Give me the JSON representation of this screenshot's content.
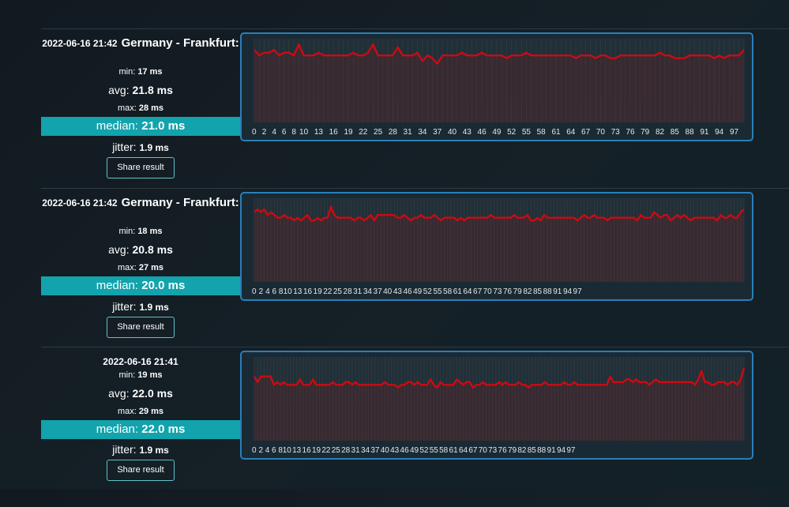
{
  "results": [
    {
      "timestamp": "2022-06-16 21:42",
      "location": "Germany - Frankfurt:",
      "min_label": "min:",
      "min": "17 ms",
      "avg_label": "avg:",
      "avg": "21.8 ms",
      "max_label": "max:",
      "max": "28 ms",
      "median_label": "median:",
      "median": "21.0 ms",
      "jitter_label": "jitter:",
      "jitter": "1.9 ms",
      "share_label": "Share result"
    },
    {
      "timestamp": "2022-06-16 21:42",
      "location": "Germany - Frankfurt:",
      "min_label": "min:",
      "min": "18 ms",
      "avg_label": "avg:",
      "avg": "20.8 ms",
      "max_label": "max:",
      "max": "27 ms",
      "median_label": "median:",
      "median": "20.0 ms",
      "jitter_label": "jitter:",
      "jitter": "1.9 ms",
      "share_label": "Share result"
    },
    {
      "timestamp": "2022-06-16 21:41",
      "location": "",
      "min_label": "min:",
      "min": "19 ms",
      "avg_label": "avg:",
      "avg": "22.0 ms",
      "max_label": "max:",
      "max": "29 ms",
      "median_label": "median:",
      "median": "22.0 ms",
      "jitter_label": "jitter:",
      "jitter": "1.9 ms",
      "share_label": "Share result"
    }
  ],
  "colors": {
    "line": "#cc0a12",
    "fill": "#3a2a31",
    "median_bg": "#12a3ad",
    "border": "#2a7fb8"
  },
  "chart_data": [
    {
      "type": "line",
      "x_tick_labels": [
        "0",
        "2",
        "4",
        "6",
        "8",
        "10",
        "13",
        "16",
        "19",
        "22",
        "25",
        "28",
        "31",
        "34",
        "37",
        "40",
        "43",
        "46",
        "49",
        "52",
        "55",
        "58",
        "61",
        "64",
        "67",
        "70",
        "73",
        "76",
        "79",
        "82",
        "85",
        "88",
        "91",
        "94",
        "97"
      ],
      "ylim": [
        0,
        30
      ],
      "series": [
        {
          "values": [
            26,
            24,
            25,
            25,
            26,
            24,
            25,
            25,
            24,
            28,
            24,
            24,
            24,
            25,
            24,
            24,
            24,
            24,
            24,
            24,
            25,
            24,
            24,
            25,
            28,
            24,
            24,
            24,
            24,
            27,
            24,
            24,
            24,
            25,
            22,
            24,
            23,
            21,
            24,
            24,
            24,
            24,
            25,
            24,
            24,
            24,
            25,
            24,
            24,
            24,
            24,
            23,
            24,
            24,
            24,
            25,
            24,
            24,
            24,
            24,
            24,
            24,
            24,
            24,
            24,
            23,
            24,
            24,
            24,
            23,
            24,
            24,
            23,
            23,
            24,
            24,
            24,
            24,
            24,
            24,
            24,
            24,
            25,
            24,
            24,
            23,
            23,
            23,
            24,
            24,
            24,
            24,
            24,
            23,
            24,
            23,
            24,
            24,
            24,
            26
          ]
        }
      ]
    },
    {
      "type": "line",
      "x_tick_labels": [
        "0",
        "2",
        "4",
        "6",
        "8",
        "10",
        "13",
        "16",
        "19",
        "22",
        "25",
        "28",
        "31",
        "34",
        "37",
        "40",
        "43",
        "46",
        "49",
        "52",
        "55",
        "58",
        "61",
        "64",
        "67",
        "70",
        "73",
        "76",
        "79",
        "82",
        "85",
        "88",
        "91",
        "94",
        "97"
      ],
      "ylim": [
        0,
        30
      ],
      "series": [
        {
          "values": [
            25,
            26,
            25,
            26,
            24,
            25,
            24,
            23,
            23,
            24,
            23,
            23,
            22,
            23,
            22,
            23,
            24,
            22,
            22,
            23,
            22,
            23,
            23,
            27,
            24,
            23,
            23,
            23,
            23,
            23,
            22,
            23,
            23,
            22,
            23,
            24,
            22,
            24,
            24,
            24,
            24,
            24,
            24,
            23,
            23,
            24,
            23,
            22,
            23,
            23,
            24,
            23,
            23,
            23,
            24,
            23,
            22,
            23,
            23,
            23,
            23,
            22,
            23,
            22,
            23,
            23,
            23,
            23,
            23,
            23,
            23,
            24,
            23,
            23,
            23,
            23,
            23,
            23,
            24,
            23,
            23,
            23,
            24,
            22,
            22,
            23,
            22,
            24,
            23,
            23,
            23,
            23,
            23,
            23,
            23,
            23,
            23,
            22,
            23,
            24,
            23,
            23,
            24,
            23,
            23,
            23,
            22,
            23,
            23,
            23,
            23,
            23,
            23,
            23,
            23,
            22,
            24,
            23,
            23,
            23,
            25,
            24,
            23,
            24,
            24,
            22,
            23,
            24,
            23,
            24,
            23,
            22,
            23,
            23,
            23,
            23,
            23,
            23,
            23,
            22,
            24,
            23,
            23,
            24,
            23,
            23,
            25,
            26
          ]
        }
      ]
    },
    {
      "type": "line",
      "x_tick_labels": [
        "0",
        "2",
        "4",
        "6",
        "8",
        "10",
        "13",
        "16",
        "19",
        "22",
        "25",
        "28",
        "31",
        "34",
        "37",
        "40",
        "43",
        "46",
        "49",
        "52",
        "55",
        "58",
        "61",
        "64",
        "67",
        "70",
        "73",
        "76",
        "79",
        "82",
        "85",
        "88",
        "91",
        "94",
        "97"
      ],
      "ylim": [
        0,
        30
      ],
      "series": [
        {
          "values": [
            23,
            21,
            23,
            23,
            23,
            23,
            20,
            21,
            20,
            21,
            20,
            20,
            20,
            20,
            22,
            20,
            20,
            20,
            22,
            20,
            20,
            20,
            20,
            20,
            21,
            20,
            20,
            20,
            21,
            21,
            20,
            21,
            20,
            20,
            20,
            20,
            20,
            20,
            20,
            20,
            21,
            20,
            20,
            20,
            19,
            20,
            20,
            21,
            21,
            20,
            21,
            20,
            20,
            20,
            22,
            20,
            19,
            21,
            20,
            20,
            20,
            20,
            22,
            21,
            20,
            21,
            21,
            19,
            20,
            20,
            21,
            20,
            20,
            20,
            20,
            21,
            20,
            21,
            20,
            20,
            20,
            21,
            20,
            20,
            19,
            20,
            20,
            20,
            20,
            21,
            20,
            20,
            20,
            20,
            20,
            21,
            20,
            20,
            21,
            20,
            20,
            20,
            20,
            20,
            20,
            20,
            20,
            20,
            20,
            23,
            21,
            21,
            21,
            21,
            22,
            22,
            21,
            22,
            21,
            21,
            21,
            20,
            21,
            22,
            21,
            21,
            21,
            21,
            21,
            21,
            21,
            21,
            21,
            21,
            21,
            20,
            22,
            25,
            21,
            21,
            20,
            20,
            21,
            21,
            21,
            20,
            21,
            21,
            20,
            22,
            26
          ]
        }
      ]
    }
  ]
}
